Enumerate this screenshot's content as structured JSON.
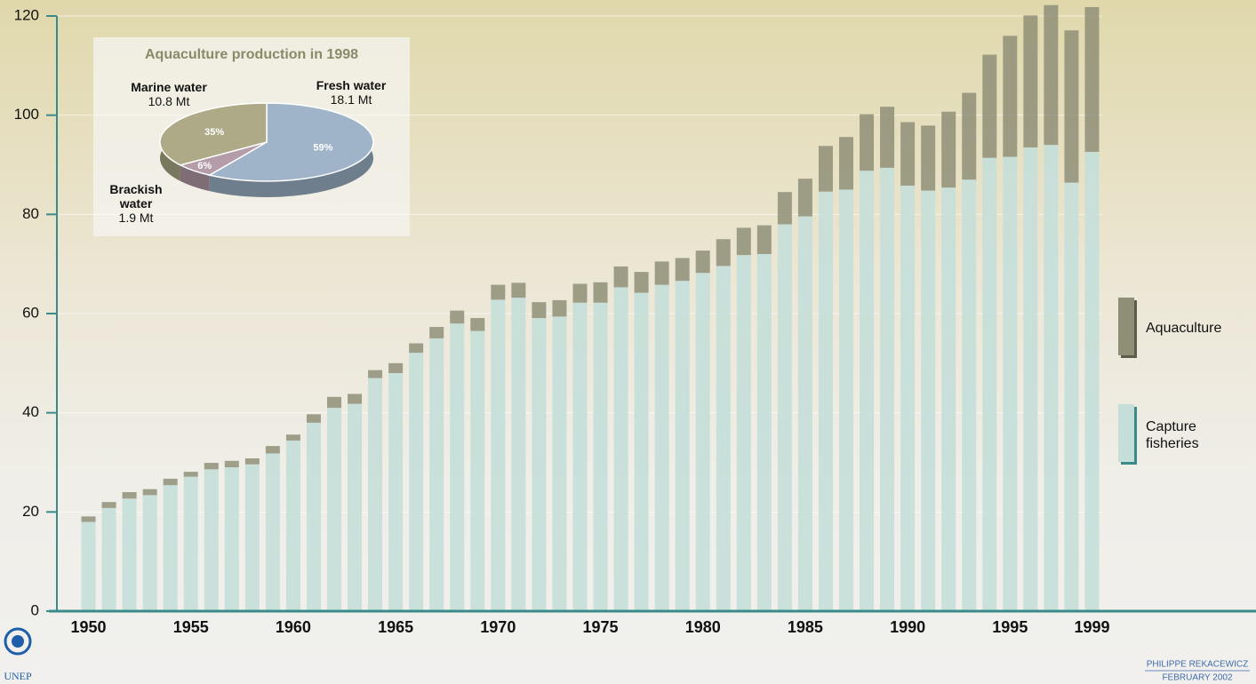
{
  "chart_data": [
    {
      "type": "bar",
      "stacked": true,
      "categories": [
        "1950",
        null,
        null,
        null,
        null,
        "1955",
        null,
        null,
        null,
        null,
        "1960",
        null,
        null,
        null,
        null,
        "1965",
        null,
        null,
        null,
        null,
        "1970",
        null,
        null,
        null,
        null,
        "1975",
        null,
        null,
        null,
        null,
        "1980",
        null,
        null,
        null,
        null,
        "1985",
        null,
        null,
        null,
        null,
        "1990",
        null,
        null,
        null,
        null,
        "1995",
        null,
        null,
        null,
        "1999"
      ],
      "series": [
        {
          "name": "Capture fisheries",
          "color": "#c5ded9",
          "values": [
            18.0,
            20.8,
            22.7,
            23.4,
            25.4,
            27.1,
            28.6,
            29.0,
            29.6,
            31.8,
            34.4,
            38.0,
            41.0,
            41.8,
            47.0,
            48.0,
            52.1,
            55.0,
            58.0,
            56.5,
            62.8,
            63.2,
            59.1,
            59.4,
            62.2,
            62.2,
            65.3,
            64.2,
            65.8,
            66.6,
            68.2,
            69.6,
            71.8,
            72.0,
            78.0,
            79.6,
            84.6,
            85.0,
            88.8,
            89.4,
            85.8,
            84.8,
            85.4,
            87.0,
            91.4,
            91.6,
            93.5,
            94.0,
            86.4,
            92.6
          ]
        },
        {
          "name": "Aquaculture",
          "color": "#8f8f78",
          "values": [
            1.1,
            1.2,
            1.3,
            1.2,
            1.3,
            1.0,
            1.3,
            1.3,
            1.2,
            1.5,
            1.2,
            1.7,
            2.2,
            2.0,
            1.6,
            2.0,
            1.9,
            2.3,
            2.6,
            2.6,
            3.0,
            3.0,
            3.2,
            3.3,
            3.8,
            4.1,
            4.2,
            4.2,
            4.7,
            4.6,
            4.5,
            5.4,
            5.5,
            5.8,
            6.5,
            7.6,
            9.2,
            10.6,
            11.4,
            12.3,
            12.8,
            13.1,
            15.3,
            17.5,
            20.8,
            24.4,
            26.6,
            28.2,
            30.7,
            29.2
          ]
        }
      ],
      "ylim": [
        0,
        120
      ],
      "yticks": [
        0,
        20,
        40,
        60,
        80,
        100,
        120
      ],
      "grid": true
    },
    {
      "type": "pie",
      "title": "Aquaculture production in 1998",
      "categories": [
        "Fresh water",
        "Brackish water",
        "Marine water"
      ],
      "values": [
        59,
        6,
        35
      ],
      "value_labels": [
        "59%",
        "6%",
        "35%"
      ],
      "amounts": [
        18.1,
        1.9,
        10.8
      ],
      "amount_labels": [
        "18.1 Mt",
        "1.9 Mt",
        "10.8 Mt"
      ],
      "colors": [
        "#9fb4c9",
        "#b59ca9",
        "#aeaa88"
      ]
    }
  ],
  "credits": {
    "author": "PHILIPPE REKACEWICZ",
    "date": "FEBRUARY 2002",
    "org": "UNEP"
  }
}
